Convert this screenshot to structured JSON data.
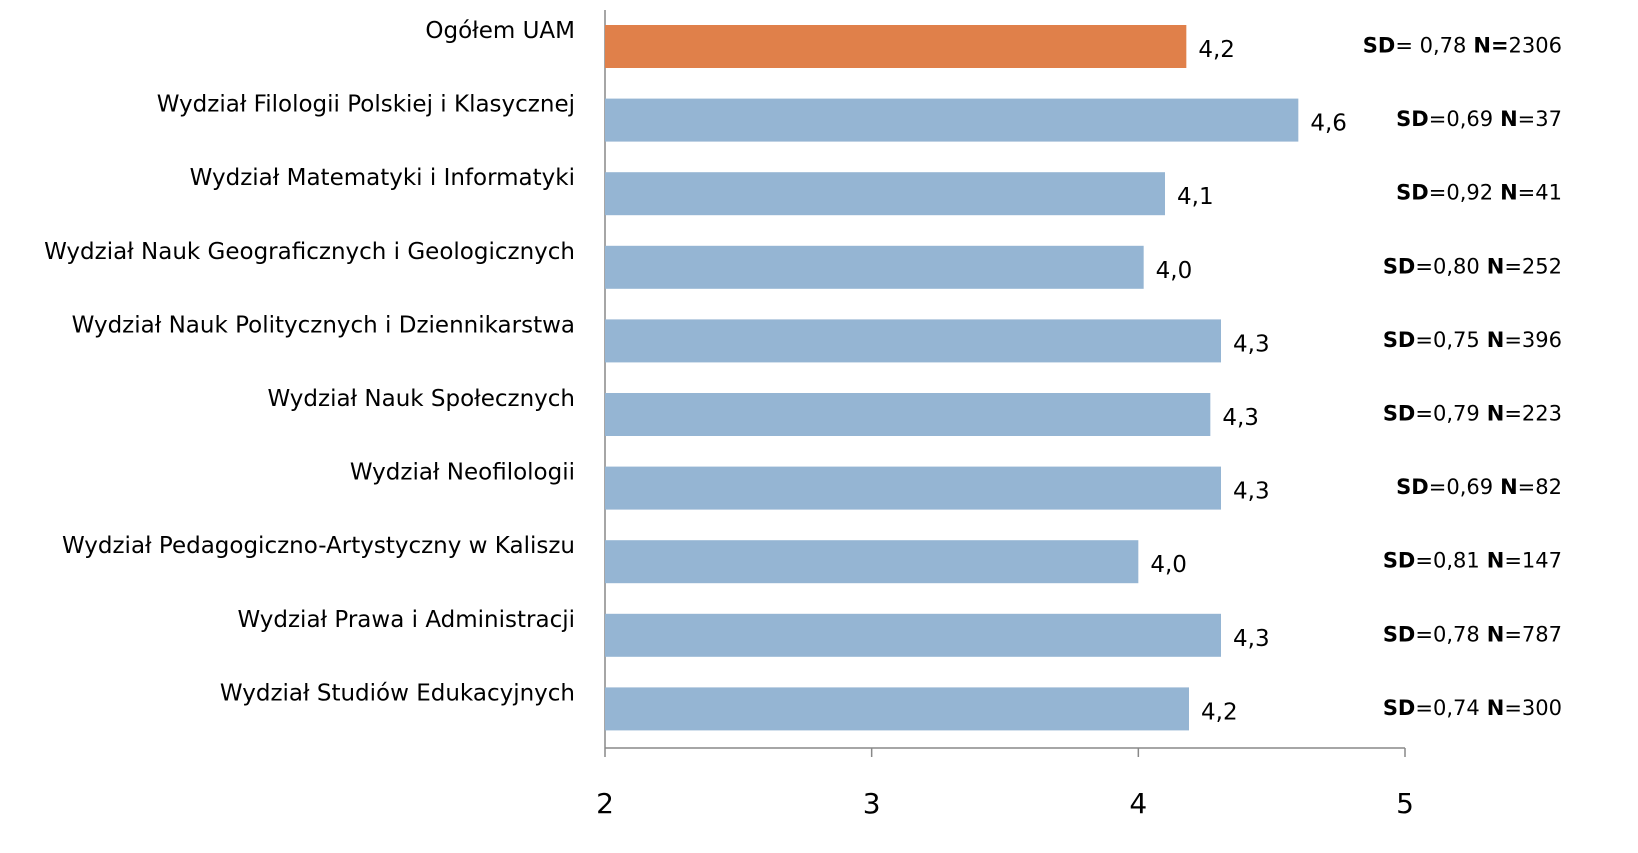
{
  "chart_data": {
    "type": "barh",
    "categories": [
      "Ogółem UAM",
      "Wydział Filologii Polskiej i Klasycznej",
      "Wydział Matematyki i Informatyki",
      "Wydział Nauk Geograficznych i Geologicznych",
      "Wydział Nauk Politycznych i Dziennikarstwa",
      "Wydział Nauk Społecznych",
      "Wydział Neofilologii",
      "Wydział Pedagogiczno-Artystyczny w Kaliszu",
      "Wydział Prawa i Administracji",
      "Wydział Studiów Edukacyjnych"
    ],
    "values": [
      4.18,
      4.6,
      4.1,
      4.02,
      4.31,
      4.27,
      4.31,
      4.0,
      4.31,
      4.19
    ],
    "value_labels": [
      "4,2",
      "4,6",
      "4,1",
      "4,0",
      "4,3",
      "4,3",
      "4,3",
      "4,0",
      "4,3",
      "4,2"
    ],
    "colors": [
      "#e0804a",
      "#95b5d3",
      "#95b5d3",
      "#95b5d3",
      "#95b5d3",
      "#95b5d3",
      "#95b5d3",
      "#95b5d3",
      "#95b5d3",
      "#95b5d3"
    ],
    "annotations": [
      [
        "SD",
        "= 0,78",
        "N=",
        "2306"
      ],
      [
        "SD",
        "=0,69",
        "N",
        "=37"
      ],
      [
        "SD",
        "=0,92",
        "N",
        "=41"
      ],
      [
        "SD",
        "=0,80",
        "N",
        "=252"
      ],
      [
        "SD",
        "=0,75",
        "N",
        "=396"
      ],
      [
        "SD",
        "=0,79",
        "N",
        "=223"
      ],
      [
        "SD",
        "=0,69",
        "N",
        "=82"
      ],
      [
        "SD",
        "=0,81",
        "N",
        "=147"
      ],
      [
        "SD",
        "=0,78",
        "N",
        "=787"
      ],
      [
        "SD",
        "=0,74",
        "N",
        "=300"
      ]
    ],
    "xlim": [
      2,
      5
    ],
    "xticks": [
      2,
      3,
      4,
      5
    ]
  }
}
